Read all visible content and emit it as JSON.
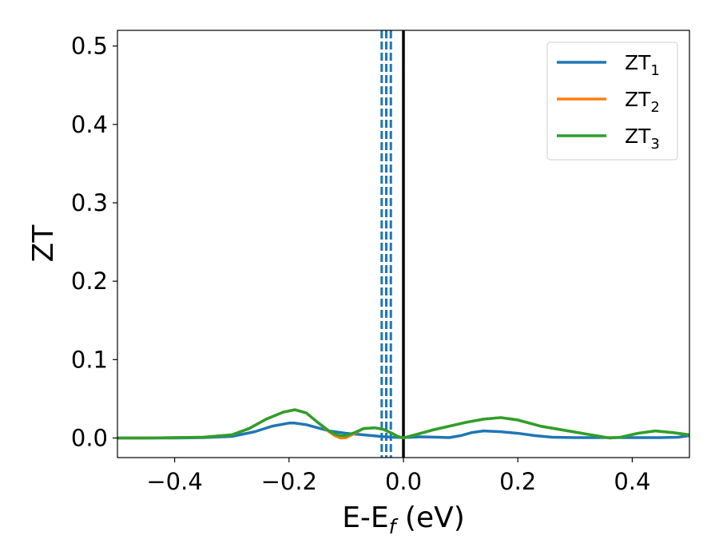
{
  "chart_data": {
    "type": "line",
    "xlabel": "E-E",
    "xlabel_sub": "f",
    "xlabel_unit": " (eV)",
    "ylabel": "ZT",
    "xlim": [
      -0.5,
      0.5
    ],
    "ylim": [
      -0.025,
      0.52
    ],
    "xticks": [
      -0.4,
      -0.2,
      0.0,
      0.2,
      0.4
    ],
    "xtick_labels": [
      "−0.4",
      "−0.2",
      "0.0",
      "0.2",
      "0.4"
    ],
    "yticks": [
      0.0,
      0.1,
      0.2,
      0.3,
      0.4,
      0.5
    ],
    "ytick_labels": [
      "0.0",
      "0.1",
      "0.2",
      "0.3",
      "0.4",
      "0.5"
    ],
    "grid": false,
    "legend_position": "top-right",
    "series": [
      {
        "name": "ZT",
        "name_sub": "1",
        "color": "#1f77b4",
        "x": [
          -0.5,
          -0.45,
          -0.4,
          -0.35,
          -0.3,
          -0.26,
          -0.23,
          -0.2,
          -0.19,
          -0.17,
          -0.15,
          -0.13,
          -0.1,
          -0.07,
          -0.04,
          -0.02,
          0.0,
          0.03,
          0.06,
          0.08,
          0.1,
          0.12,
          0.14,
          0.17,
          0.2,
          0.23,
          0.26,
          0.3,
          0.35,
          0.4,
          0.45,
          0.48,
          0.5
        ],
        "y": [
          0.0,
          0.0,
          0.0,
          0.0005,
          0.002,
          0.008,
          0.015,
          0.019,
          0.019,
          0.017,
          0.013,
          0.009,
          0.006,
          0.004,
          0.002,
          0.001,
          0.0005,
          0.0015,
          0.001,
          0.0005,
          0.003,
          0.007,
          0.009,
          0.008,
          0.006,
          0.003,
          0.001,
          0.0005,
          0.0005,
          0.0005,
          0.0005,
          0.001,
          0.003
        ]
      },
      {
        "name": "ZT",
        "name_sub": "2",
        "color": "#ff7f0e",
        "x": [
          -0.5,
          -0.45,
          -0.4,
          -0.35,
          -0.3,
          -0.27,
          -0.24,
          -0.21,
          -0.19,
          -0.17,
          -0.15,
          -0.13,
          -0.12,
          -0.11,
          -0.1,
          -0.085,
          -0.07,
          -0.05,
          -0.035,
          -0.02,
          -0.01,
          0.0,
          0.02,
          0.05,
          0.08,
          0.11,
          0.14,
          0.17,
          0.2,
          0.24,
          0.28,
          0.32,
          0.36,
          0.38,
          0.41,
          0.44,
          0.47,
          0.5
        ],
        "y": [
          0.0,
          0.0,
          0.0005,
          0.001,
          0.004,
          0.012,
          0.024,
          0.033,
          0.036,
          0.032,
          0.02,
          0.008,
          0.003,
          0.0,
          0.0005,
          0.006,
          0.012,
          0.013,
          0.011,
          0.006,
          0.002,
          0.0,
          0.004,
          0.01,
          0.015,
          0.02,
          0.024,
          0.026,
          0.023,
          0.015,
          0.01,
          0.005,
          0.0,
          0.001,
          0.006,
          0.009,
          0.007,
          0.004
        ]
      },
      {
        "name": "ZT",
        "name_sub": "3",
        "color": "#2ca02c",
        "x": [
          -0.5,
          -0.45,
          -0.4,
          -0.35,
          -0.3,
          -0.27,
          -0.24,
          -0.21,
          -0.19,
          -0.17,
          -0.15,
          -0.13,
          -0.12,
          -0.11,
          -0.1,
          -0.085,
          -0.07,
          -0.05,
          -0.035,
          -0.02,
          -0.01,
          0.0,
          0.02,
          0.05,
          0.08,
          0.11,
          0.14,
          0.17,
          0.2,
          0.24,
          0.28,
          0.32,
          0.36,
          0.38,
          0.41,
          0.44,
          0.47,
          0.5
        ],
        "y": [
          0.0,
          0.0,
          0.0005,
          0.001,
          0.004,
          0.012,
          0.024,
          0.033,
          0.036,
          0.032,
          0.02,
          0.009,
          0.005,
          0.003,
          0.003,
          0.007,
          0.012,
          0.013,
          0.011,
          0.006,
          0.002,
          0.0,
          0.004,
          0.01,
          0.015,
          0.02,
          0.024,
          0.026,
          0.023,
          0.015,
          0.01,
          0.005,
          0.0,
          0.001,
          0.006,
          0.009,
          0.007,
          0.004
        ]
      }
    ],
    "vlines": [
      {
        "x": 0.0,
        "color": "#000000",
        "style": "solid"
      },
      {
        "x": -0.038,
        "color": "#1f77b4",
        "style": "dashed"
      },
      {
        "x": -0.03,
        "color": "#1f77b4",
        "style": "dashed"
      },
      {
        "x": -0.022,
        "color": "#1f77b4",
        "style": "dashed"
      }
    ]
  }
}
